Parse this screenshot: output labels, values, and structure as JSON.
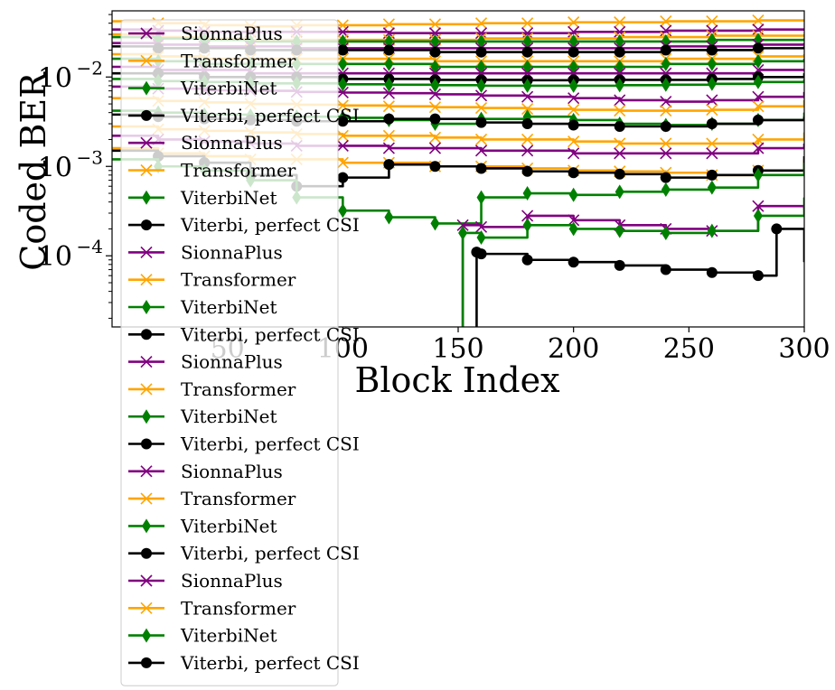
{
  "chart_data": {
    "type": "line",
    "xlabel": "Block Index",
    "ylabel": "Coded BER",
    "xlim": [
      0,
      300
    ],
    "ylim": [
      1.6e-05,
      0.055
    ],
    "yscale": "log",
    "x_ticks": [
      {
        "value": 50,
        "label": "50"
      },
      {
        "value": 100,
        "label": "100"
      },
      {
        "value": 150,
        "label": "150"
      },
      {
        "value": 200,
        "label": "200"
      },
      {
        "value": 250,
        "label": "250"
      },
      {
        "value": 300,
        "label": "300"
      }
    ],
    "y_ticks": [
      {
        "value": 0.0001,
        "base": "10",
        "exp": "−4"
      },
      {
        "value": 0.001,
        "base": "10",
        "exp": "−3"
      },
      {
        "value": 0.01,
        "base": "10",
        "exp": "−2"
      }
    ],
    "colors": {
      "SionnaPlus": "#800080",
      "Transformer": "#FFA500",
      "ViterbiNet": "#008000",
      "Viterbi, perfect CSI": "#000000"
    },
    "legend": {
      "placement": "upper-left",
      "entries": [
        {
          "name": "SionnaPlus",
          "marker": "x"
        },
        {
          "name": "Transformer",
          "marker": "x"
        },
        {
          "name": "ViterbiNet",
          "marker": "diamond"
        },
        {
          "name": "Viterbi, perfect CSI",
          "marker": "circle"
        },
        {
          "name": "SionnaPlus",
          "marker": "x"
        },
        {
          "name": "Transformer",
          "marker": "x"
        },
        {
          "name": "ViterbiNet",
          "marker": "diamond"
        },
        {
          "name": "Viterbi, perfect CSI",
          "marker": "circle"
        },
        {
          "name": "SionnaPlus",
          "marker": "x"
        },
        {
          "name": "Transformer",
          "marker": "x"
        },
        {
          "name": "ViterbiNet",
          "marker": "diamond"
        },
        {
          "name": "Viterbi, perfect CSI",
          "marker": "circle"
        },
        {
          "name": "SionnaPlus",
          "marker": "x"
        },
        {
          "name": "Transformer",
          "marker": "x"
        },
        {
          "name": "ViterbiNet",
          "marker": "diamond"
        },
        {
          "name": "Viterbi, perfect CSI",
          "marker": "circle"
        },
        {
          "name": "SionnaPlus",
          "marker": "x"
        },
        {
          "name": "Transformer",
          "marker": "x"
        },
        {
          "name": "ViterbiNet",
          "marker": "diamond"
        },
        {
          "name": "Viterbi, perfect CSI",
          "marker": "circle"
        },
        {
          "name": "SionnaPlus",
          "marker": "x"
        },
        {
          "name": "Transformer",
          "marker": "x"
        },
        {
          "name": "ViterbiNet",
          "marker": "diamond"
        },
        {
          "name": "Viterbi, perfect CSI",
          "marker": "circle"
        }
      ]
    },
    "series": [
      {
        "method": "Transformer",
        "marker": "x",
        "x": [
          0,
          20,
          40,
          60,
          80,
          100,
          120,
          140,
          160,
          180,
          200,
          220,
          240,
          260,
          280,
          300
        ],
        "y": [
          0.042,
          0.04,
          0.038,
          0.037,
          0.038,
          0.038,
          0.039,
          0.039,
          0.04,
          0.04,
          0.041,
          0.041,
          0.042,
          0.042,
          0.043,
          0.044
        ]
      },
      {
        "method": "SionnaPlus",
        "marker": "x",
        "x": [
          0,
          20,
          40,
          60,
          80,
          100,
          120,
          140,
          160,
          180,
          200,
          220,
          240,
          260,
          280,
          300
        ],
        "y": [
          0.034,
          0.033,
          0.032,
          0.032,
          0.032,
          0.032,
          0.031,
          0.031,
          0.031,
          0.031,
          0.032,
          0.032,
          0.033,
          0.033,
          0.034,
          0.035
        ]
      },
      {
        "method": "Transformer",
        "marker": "x",
        "x": [
          0,
          20,
          40,
          60,
          80,
          100,
          120,
          140,
          160,
          180,
          200,
          220,
          240,
          260,
          280,
          300
        ],
        "y": [
          0.03,
          0.028,
          0.027,
          0.026,
          0.026,
          0.026,
          0.026,
          0.026,
          0.027,
          0.027,
          0.027,
          0.028,
          0.028,
          0.029,
          0.029,
          0.03
        ]
      },
      {
        "method": "ViterbiNet",
        "marker": "diamond",
        "x": [
          0,
          20,
          40,
          60,
          80,
          100,
          120,
          140,
          160,
          180,
          200,
          220,
          240,
          260,
          280,
          300
        ],
        "y": [
          0.028,
          0.027,
          0.026,
          0.025,
          0.025,
          0.025,
          0.025,
          0.025,
          0.025,
          0.025,
          0.025,
          0.025,
          0.025,
          0.026,
          0.026,
          0.027
        ]
      },
      {
        "method": "SionnaPlus",
        "marker": "x",
        "x": [
          0,
          20,
          40,
          60,
          80,
          100,
          120,
          140,
          160,
          180,
          200,
          220,
          240,
          260,
          280,
          300
        ],
        "y": [
          0.024,
          0.023,
          0.022,
          0.022,
          0.021,
          0.021,
          0.021,
          0.021,
          0.021,
          0.021,
          0.021,
          0.021,
          0.022,
          0.022,
          0.023,
          0.024
        ]
      },
      {
        "method": "Viterbi, perfect CSI",
        "marker": "circle",
        "x": [
          0,
          20,
          40,
          60,
          80,
          100,
          120,
          140,
          160,
          180,
          200,
          220,
          240,
          260,
          280,
          300
        ],
        "y": [
          0.022,
          0.021,
          0.021,
          0.02,
          0.02,
          0.02,
          0.02,
          0.019,
          0.019,
          0.019,
          0.019,
          0.019,
          0.02,
          0.02,
          0.021,
          0.022
        ]
      },
      {
        "method": "Transformer",
        "marker": "x",
        "x": [
          0,
          20,
          40,
          60,
          80,
          100,
          120,
          140,
          160,
          180,
          200,
          220,
          240,
          260,
          280,
          300
        ],
        "y": [
          0.018,
          0.017,
          0.016,
          0.016,
          0.016,
          0.016,
          0.016,
          0.015,
          0.015,
          0.015,
          0.015,
          0.015,
          0.016,
          0.016,
          0.017,
          0.018
        ]
      },
      {
        "method": "ViterbiNet",
        "marker": "diamond",
        "x": [
          0,
          20,
          40,
          60,
          80,
          100,
          120,
          140,
          160,
          180,
          200,
          220,
          240,
          260,
          280,
          300
        ],
        "y": [
          0.016,
          0.015,
          0.014,
          0.014,
          0.014,
          0.014,
          0.014,
          0.013,
          0.013,
          0.013,
          0.013,
          0.013,
          0.014,
          0.014,
          0.015,
          0.016
        ]
      },
      {
        "method": "SionnaPlus",
        "marker": "x",
        "x": [
          0,
          20,
          40,
          60,
          80,
          100,
          120,
          140,
          160,
          180,
          200,
          220,
          240,
          260,
          280,
          300
        ],
        "y": [
          0.013,
          0.012,
          0.012,
          0.011,
          0.011,
          0.011,
          0.011,
          0.011,
          0.011,
          0.011,
          0.011,
          0.011,
          0.011,
          0.011,
          0.012,
          0.012
        ]
      },
      {
        "method": "Viterbi, perfect CSI",
        "marker": "circle",
        "x": [
          0,
          20,
          40,
          60,
          80,
          100,
          120,
          140,
          160,
          180,
          200,
          220,
          240,
          260,
          280,
          300
        ],
        "y": [
          0.011,
          0.011,
          0.01,
          0.01,
          0.01,
          0.0095,
          0.0095,
          0.0093,
          0.0093,
          0.0092,
          0.0093,
          0.0093,
          0.0093,
          0.0095,
          0.01,
          0.011
        ]
      },
      {
        "method": "ViterbiNet",
        "marker": "diamond",
        "x": [
          0,
          20,
          40,
          60,
          80,
          100,
          120,
          140,
          160,
          180,
          200,
          220,
          240,
          260,
          280,
          300
        ],
        "y": [
          0.0095,
          0.009,
          0.0088,
          0.0085,
          0.0085,
          0.0083,
          0.0082,
          0.0081,
          0.008,
          0.008,
          0.008,
          0.0081,
          0.0082,
          0.0084,
          0.0088,
          0.0095
        ]
      },
      {
        "method": "SionnaPlus",
        "marker": "x",
        "x": [
          0,
          20,
          40,
          60,
          80,
          100,
          120,
          140,
          160,
          180,
          200,
          220,
          240,
          260,
          280,
          300
        ],
        "y": [
          0.0078,
          0.0074,
          0.0071,
          0.007,
          0.0068,
          0.0067,
          0.0066,
          0.0064,
          0.0062,
          0.006,
          0.0058,
          0.0055,
          0.0053,
          0.0055,
          0.006,
          0.0068
        ]
      },
      {
        "method": "Transformer",
        "marker": "x",
        "x": [
          0,
          20,
          40,
          60,
          80,
          100,
          120,
          140,
          160,
          180,
          200,
          220,
          240,
          260,
          280,
          300
        ],
        "y": [
          0.0058,
          0.0054,
          0.0052,
          0.005,
          0.0049,
          0.0048,
          0.0047,
          0.0046,
          0.0045,
          0.0044,
          0.0043,
          0.0042,
          0.0042,
          0.0043,
          0.0047,
          0.0055
        ]
      },
      {
        "method": "ViterbiNet",
        "marker": "diamond",
        "x": [
          0,
          20,
          40,
          60,
          80,
          100,
          120,
          140,
          160,
          180,
          200,
          220,
          240,
          260,
          280,
          300
        ],
        "y": [
          0.0042,
          0.004,
          0.0038,
          0.0037,
          0.0036,
          0.0035,
          0.0033,
          0.003,
          0.0034,
          0.0036,
          0.0033,
          0.003,
          0.0029,
          0.003,
          0.0033,
          0.004
        ]
      },
      {
        "method": "Viterbi, perfect CSI",
        "marker": "circle",
        "x": [
          0,
          20,
          40,
          60,
          80,
          100,
          120,
          140,
          160,
          180,
          200,
          220,
          240,
          260,
          280,
          300
        ],
        "y": [
          0.0038,
          0.0036,
          0.0034,
          0.0033,
          0.0032,
          0.0032,
          0.0034,
          0.0034,
          0.0031,
          0.003,
          0.0029,
          0.0028,
          0.0028,
          0.003,
          0.0033,
          0.0036
        ]
      },
      {
        "method": "Transformer",
        "marker": "x",
        "x": [
          0,
          20,
          40,
          60,
          80,
          100,
          120,
          140,
          160,
          180,
          200,
          220,
          240,
          260,
          280,
          300
        ],
        "y": [
          0.0028,
          0.0026,
          0.0025,
          0.0024,
          0.0023,
          0.0022,
          0.0022,
          0.0021,
          0.002,
          0.002,
          0.0019,
          0.0018,
          0.0018,
          0.0018,
          0.002,
          0.0024
        ]
      },
      {
        "method": "SionnaPlus",
        "marker": "x",
        "x": [
          0,
          20,
          40,
          60,
          80,
          100,
          120,
          140,
          160,
          180,
          200,
          220,
          240,
          260,
          280,
          300
        ],
        "y": [
          0.0022,
          0.002,
          0.0019,
          0.0018,
          0.0017,
          0.0017,
          0.0016,
          0.0016,
          0.0015,
          0.0015,
          0.0014,
          0.0014,
          0.0014,
          0.0014,
          0.0016,
          0.0018
        ]
      },
      {
        "method": "Transformer",
        "marker": "x",
        "x": [
          0,
          20,
          40,
          60,
          80,
          100,
          120,
          140,
          160,
          180,
          200,
          220,
          240,
          260,
          280,
          300
        ],
        "y": [
          0.0016,
          0.0014,
          0.0013,
          0.0012,
          0.0012,
          0.0011,
          0.0011,
          0.001,
          0.001,
          0.00095,
          0.0009,
          0.00088,
          0.00085,
          0.0008,
          0.0009,
          0.0012
        ]
      },
      {
        "method": "Viterbi, perfect CSI",
        "marker": "circle",
        "x": [
          0,
          20,
          40,
          60,
          80,
          100,
          120,
          140,
          160,
          180,
          200,
          220,
          240,
          260,
          280,
          300
        ],
        "y": [
          0.0015,
          0.0013,
          0.0011,
          0.0008,
          0.0006,
          0.00075,
          0.00105,
          0.001,
          0.00095,
          0.00088,
          0.00085,
          0.00082,
          0.00075,
          0.0008,
          0.0009,
          0.0013
        ]
      },
      {
        "method": "ViterbiNet",
        "marker": "diamond",
        "x": [
          0,
          20,
          40,
          60,
          80,
          100,
          120,
          140,
          160,
          180,
          200,
          220,
          240,
          260,
          280,
          300
        ],
        "y": [
          0.0012,
          0.001,
          0.0009,
          0.0007,
          0.00045,
          0.00032,
          0.00027,
          0.00023,
          0.00045,
          0.0005,
          0.00048,
          0.00052,
          0.00055,
          0.00058,
          0.0008,
          0.0011
        ]
      },
      {
        "method": "SionnaPlus",
        "marker": "x",
        "x": [
          152,
          160,
          180,
          200,
          220,
          240,
          260,
          280,
          300
        ],
        "y": [
          0.00022,
          0.00021,
          0.00028,
          0.00025,
          0.00022,
          0.0002,
          0.00019,
          0.00036,
          0.00033
        ]
      },
      {
        "method": "ViterbiNet",
        "marker": "diamond",
        "x": [
          152,
          160,
          180,
          200,
          220,
          240,
          260,
          280,
          300
        ],
        "y": [
          0.00018,
          0.00016,
          0.00022,
          0.0002,
          0.00019,
          0.00018,
          0.00019,
          0.00028,
          0.00045
        ]
      },
      {
        "method": "Viterbi, perfect CSI",
        "marker": "circle",
        "x": [
          158,
          160,
          180,
          200,
          220,
          240,
          260,
          280,
          288,
          300
        ],
        "y": [
          0.00011,
          0.000105,
          9e-05,
          8.5e-05,
          7.8e-05,
          7e-05,
          6.5e-05,
          6e-05,
          0.0002,
          8.5e-05
        ]
      }
    ]
  }
}
